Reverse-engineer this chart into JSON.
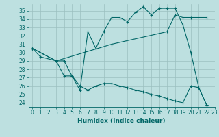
{
  "xlabel": "Humidex (Indice chaleur)",
  "xlim": [
    -0.5,
    23
  ],
  "ylim": [
    23.5,
    35.8
  ],
  "yticks": [
    24,
    25,
    26,
    27,
    28,
    29,
    30,
    31,
    32,
    33,
    34,
    35
  ],
  "xticks": [
    0,
    1,
    2,
    3,
    4,
    5,
    6,
    7,
    8,
    9,
    10,
    11,
    12,
    13,
    14,
    15,
    16,
    17,
    18,
    19,
    20,
    21,
    22,
    23
  ],
  "bg_color": "#bde0e0",
  "line_color": "#006666",
  "grid_color": "#9bbfbf",
  "lines": [
    {
      "x": [
        0,
        1,
        3,
        4,
        5,
        6,
        7,
        8,
        9,
        10,
        11,
        12,
        13,
        14,
        15,
        16,
        17,
        18,
        19,
        20,
        21,
        22
      ],
      "y": [
        30.5,
        29.5,
        29.0,
        29.0,
        27.2,
        25.5,
        32.5,
        30.5,
        32.5,
        34.2,
        34.2,
        33.7,
        34.8,
        35.5,
        34.5,
        35.3,
        35.3,
        35.3,
        33.3,
        30.0,
        25.8,
        23.7
      ]
    },
    {
      "x": [
        0,
        3,
        10,
        17,
        18,
        19,
        20,
        22
      ],
      "y": [
        30.5,
        29.0,
        31.0,
        32.5,
        34.5,
        34.2,
        34.2,
        34.2
      ]
    },
    {
      "x": [
        0,
        3,
        4,
        5,
        6,
        7,
        8,
        9,
        10,
        11,
        12,
        13,
        14,
        15,
        16,
        17,
        18,
        19,
        20,
        21,
        22
      ],
      "y": [
        30.5,
        29.0,
        27.2,
        27.2,
        26.0,
        25.5,
        26.0,
        26.3,
        26.3,
        26.0,
        25.8,
        25.5,
        25.3,
        25.0,
        24.8,
        24.5,
        24.2,
        24.0,
        26.0,
        25.8,
        23.7
      ]
    }
  ]
}
